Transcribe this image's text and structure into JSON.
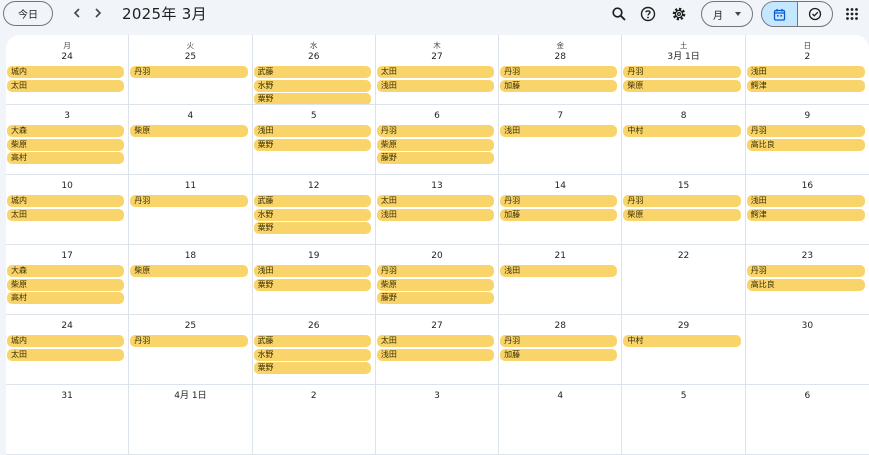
{
  "header": {
    "today_label": "今日",
    "title": "2025年 3月",
    "view_label": "月",
    "icons": [
      "chevron-left-icon",
      "chevron-right-icon",
      "search-icon",
      "help-icon",
      "gear-icon",
      "calendar-icon",
      "task-check-icon",
      "apps-grid-icon"
    ]
  },
  "colors": {
    "event": "#f8d46a",
    "selected_view": "#c2e7ff",
    "background": "#f1f4f9"
  },
  "calendar": {
    "weekdays": [
      "月",
      "火",
      "水",
      "木",
      "金",
      "土",
      "日"
    ],
    "weeks": [
      [
        {
          "day": "24",
          "events": [
            "城内",
            "太田"
          ]
        },
        {
          "day": "25",
          "events": [
            "丹羽"
          ]
        },
        {
          "day": "26",
          "events": [
            "武藤",
            "水野",
            "粟野"
          ]
        },
        {
          "day": "27",
          "events": [
            "太田",
            "浅田"
          ]
        },
        {
          "day": "28",
          "events": [
            "丹羽",
            "加藤"
          ]
        },
        {
          "day": "3月 1日",
          "events": [
            "丹羽",
            "柴原"
          ]
        },
        {
          "day": "2",
          "events": [
            "浅田",
            "鰐津"
          ]
        }
      ],
      [
        {
          "day": "3",
          "events": [
            "大森",
            "柴原",
            "高村"
          ]
        },
        {
          "day": "4",
          "events": [
            "柴原"
          ]
        },
        {
          "day": "5",
          "events": [
            "浅田",
            "粟野"
          ]
        },
        {
          "day": "6",
          "events": [
            "丹羽",
            "柴原",
            "藤野"
          ]
        },
        {
          "day": "7",
          "events": [
            "浅田"
          ]
        },
        {
          "day": "8",
          "events": [
            "中村"
          ]
        },
        {
          "day": "9",
          "events": [
            "丹羽",
            "高比良"
          ]
        }
      ],
      [
        {
          "day": "10",
          "events": [
            "城内",
            "太田"
          ]
        },
        {
          "day": "11",
          "events": [
            "丹羽"
          ]
        },
        {
          "day": "12",
          "events": [
            "武藤",
            "水野",
            "粟野"
          ]
        },
        {
          "day": "13",
          "events": [
            "太田",
            "浅田"
          ]
        },
        {
          "day": "14",
          "events": [
            "丹羽",
            "加藤"
          ]
        },
        {
          "day": "15",
          "events": [
            "丹羽",
            "柴原"
          ]
        },
        {
          "day": "16",
          "events": [
            "浅田",
            "鰐津"
          ]
        }
      ],
      [
        {
          "day": "17",
          "events": [
            "大森",
            "柴原",
            "高村"
          ]
        },
        {
          "day": "18",
          "events": [
            "柴原"
          ]
        },
        {
          "day": "19",
          "events": [
            "浅田",
            "粟野"
          ]
        },
        {
          "day": "20",
          "events": [
            "丹羽",
            "柴原",
            "藤野"
          ]
        },
        {
          "day": "21",
          "events": [
            "浅田"
          ]
        },
        {
          "day": "22",
          "events": []
        },
        {
          "day": "23",
          "events": [
            "丹羽",
            "高比良"
          ]
        }
      ],
      [
        {
          "day": "24",
          "events": [
            "城内",
            "太田"
          ]
        },
        {
          "day": "25",
          "events": [
            "丹羽"
          ]
        },
        {
          "day": "26",
          "events": [
            "武藤",
            "水野",
            "粟野"
          ]
        },
        {
          "day": "27",
          "events": [
            "太田",
            "浅田"
          ]
        },
        {
          "day": "28",
          "events": [
            "丹羽",
            "加藤"
          ]
        },
        {
          "day": "29",
          "events": [
            "中村"
          ]
        },
        {
          "day": "30",
          "events": []
        }
      ],
      [
        {
          "day": "31",
          "events": []
        },
        {
          "day": "4月 1日",
          "events": []
        },
        {
          "day": "2",
          "events": []
        },
        {
          "day": "3",
          "events": []
        },
        {
          "day": "4",
          "events": []
        },
        {
          "day": "5",
          "events": []
        },
        {
          "day": "6",
          "events": []
        }
      ]
    ]
  }
}
